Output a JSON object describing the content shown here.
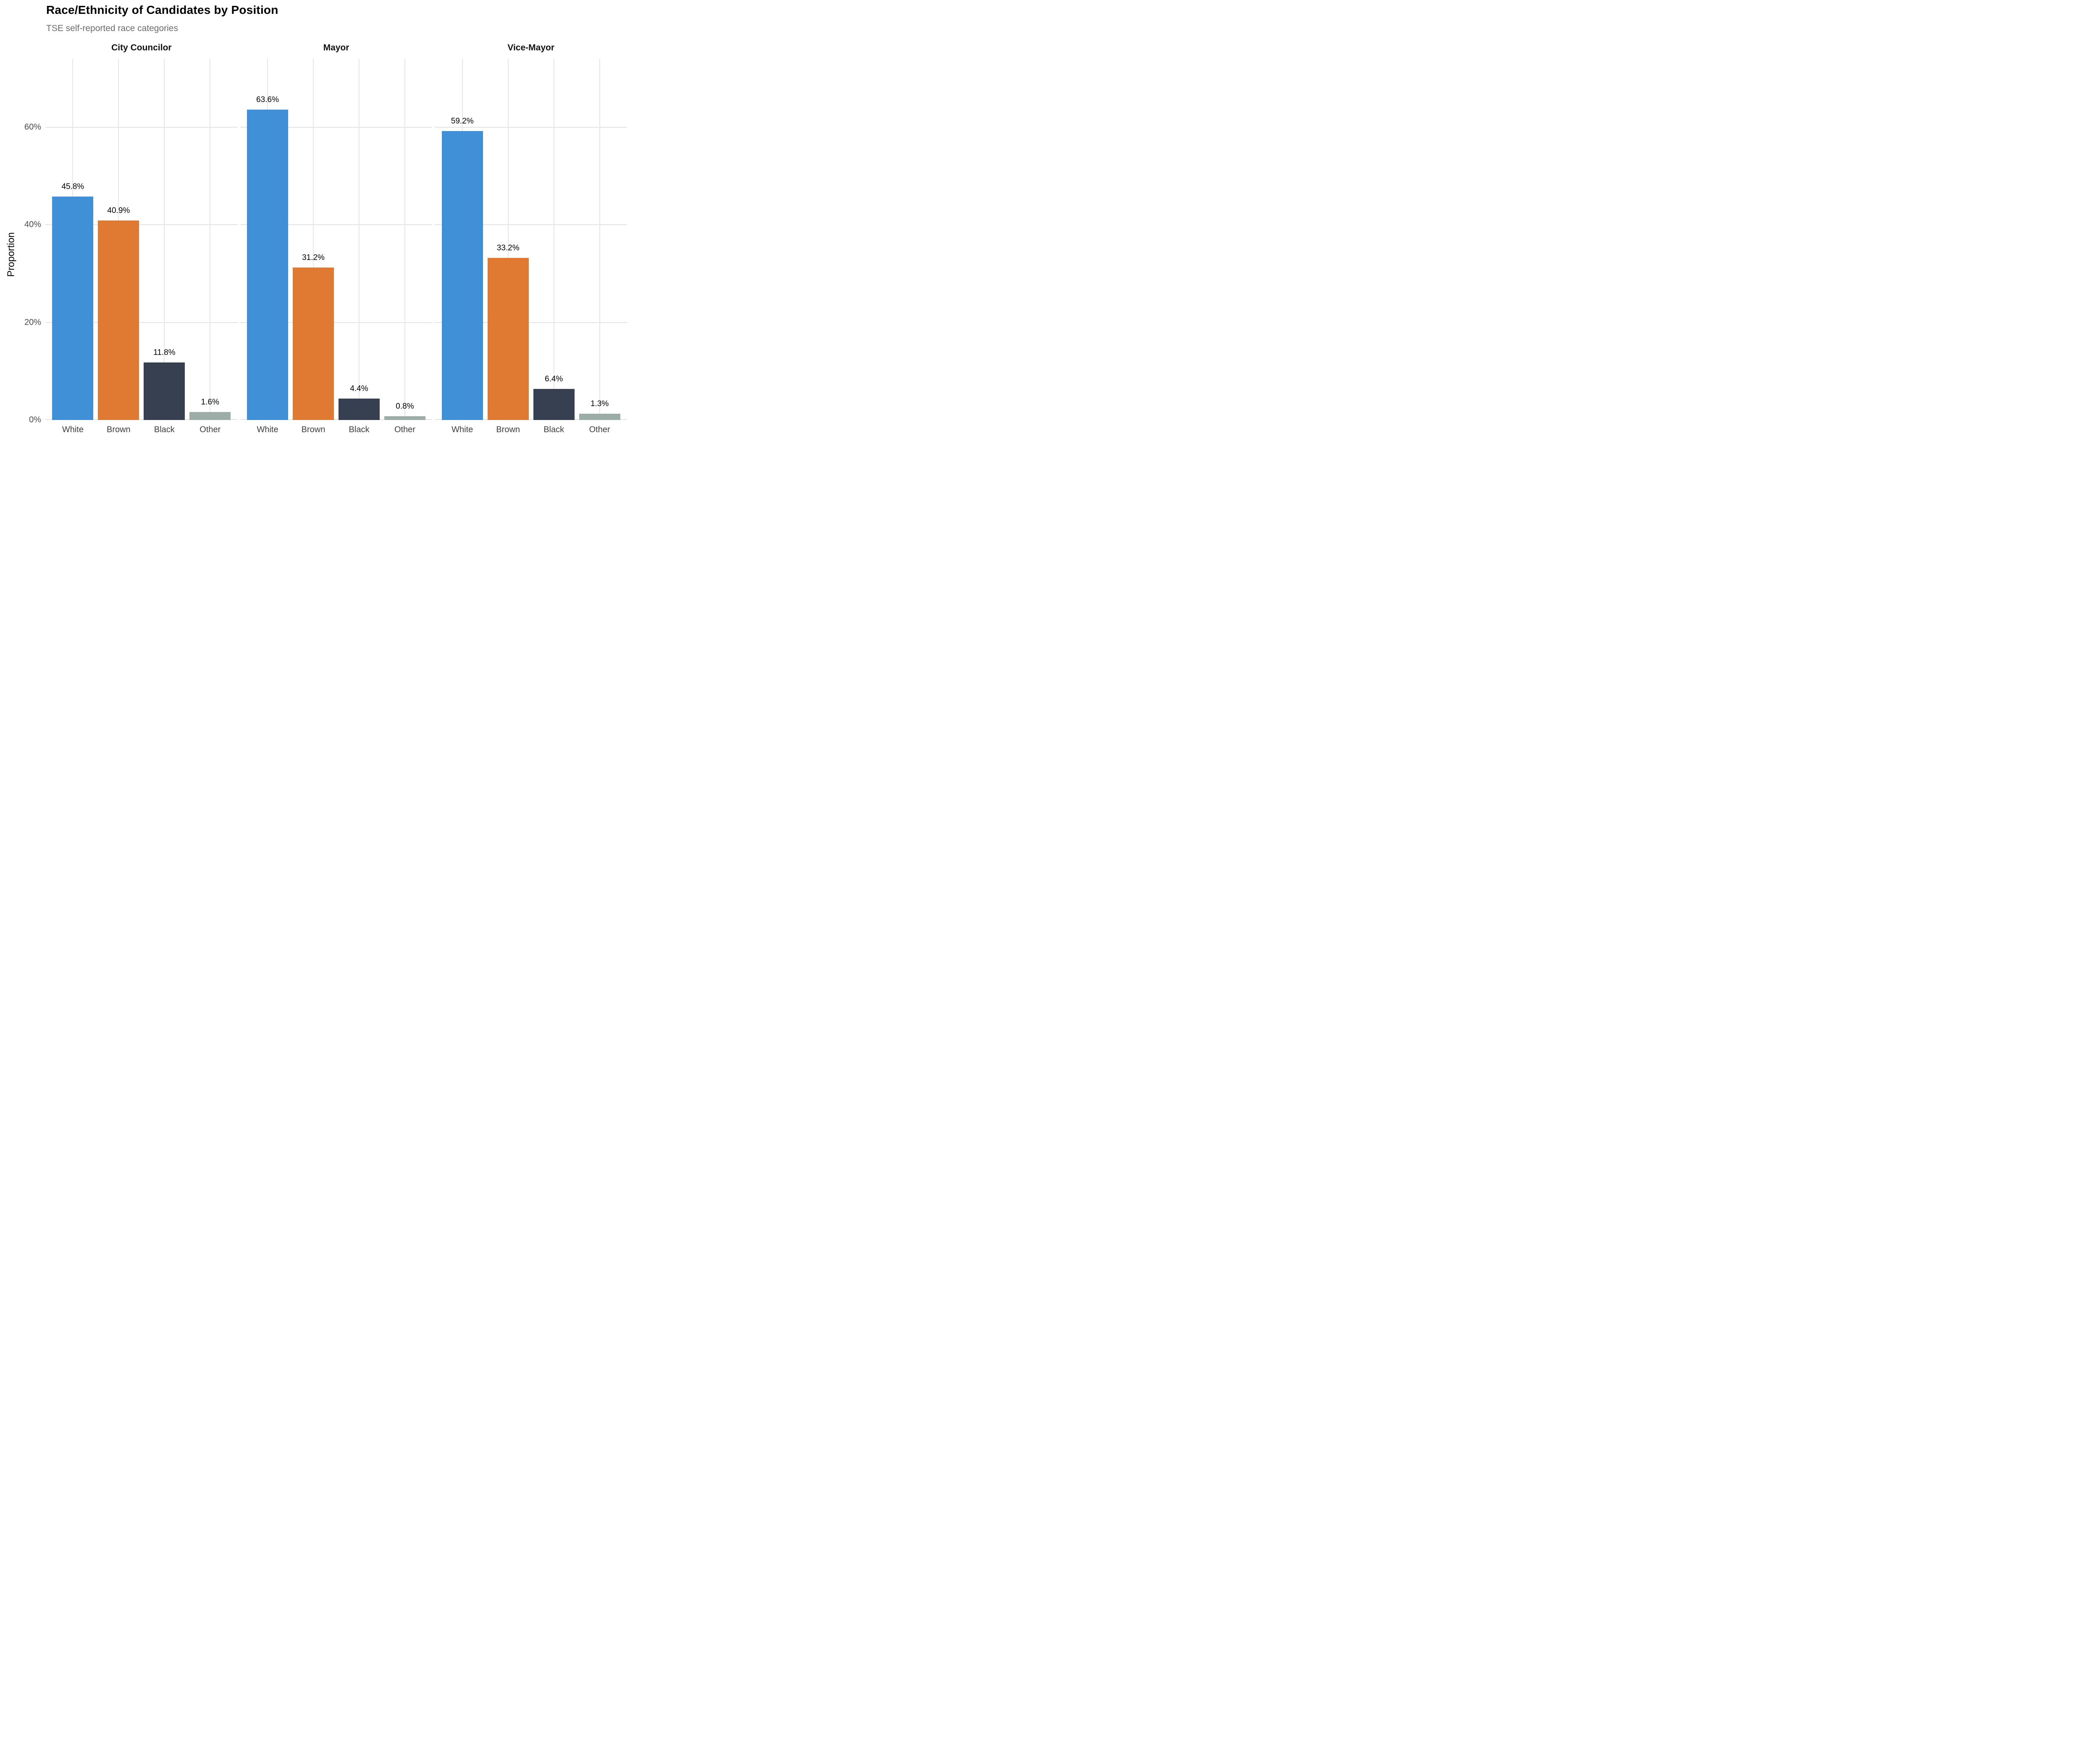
{
  "header": {
    "title": "Race/Ethnicity of Candidates by Position",
    "subtitle": "TSE self-reported race categories"
  },
  "y_axis": {
    "label": "Proportion",
    "ticks": [
      {
        "value": 0,
        "label": "0%"
      },
      {
        "value": 20,
        "label": "20%"
      },
      {
        "value": 40,
        "label": "40%"
      },
      {
        "value": 60,
        "label": "60%"
      }
    ]
  },
  "chart_data": {
    "type": "bar",
    "title": "Race/Ethnicity of Candidates by Position",
    "subtitle": "TSE self-reported race categories",
    "ylabel": "Proportion",
    "xlabel": "",
    "ylim": [
      0,
      74
    ],
    "yticks": [
      0,
      20,
      40,
      60
    ],
    "grid": "major horizontal lines and vertical line per category; no minor grid; no legend",
    "categories": [
      "White",
      "Brown",
      "Black",
      "Other"
    ],
    "bar_colors": [
      "#3F90D7",
      "#E07932",
      "#374050",
      "#9CACA7"
    ],
    "facets": [
      {
        "label": "City Councilor",
        "categories": [
          "White",
          "Brown",
          "Black",
          "Other"
        ],
        "values": [
          45.8,
          40.9,
          11.8,
          1.6
        ],
        "value_labels": [
          "45.8%",
          "40.9%",
          "11.8%",
          "1.6%"
        ]
      },
      {
        "label": "Mayor",
        "categories": [
          "White",
          "Brown",
          "Black",
          "Other"
        ],
        "values": [
          63.6,
          31.2,
          4.4,
          0.8
        ],
        "value_labels": [
          "63.6%",
          "31.2%",
          "4.4%",
          "0.8%"
        ]
      },
      {
        "label": "Vice-Mayor",
        "categories": [
          "White",
          "Brown",
          "Black",
          "Other"
        ],
        "values": [
          59.2,
          33.2,
          6.4,
          1.3
        ],
        "value_labels": [
          "59.2%",
          "33.2%",
          "6.4%",
          "1.3%"
        ]
      }
    ]
  }
}
